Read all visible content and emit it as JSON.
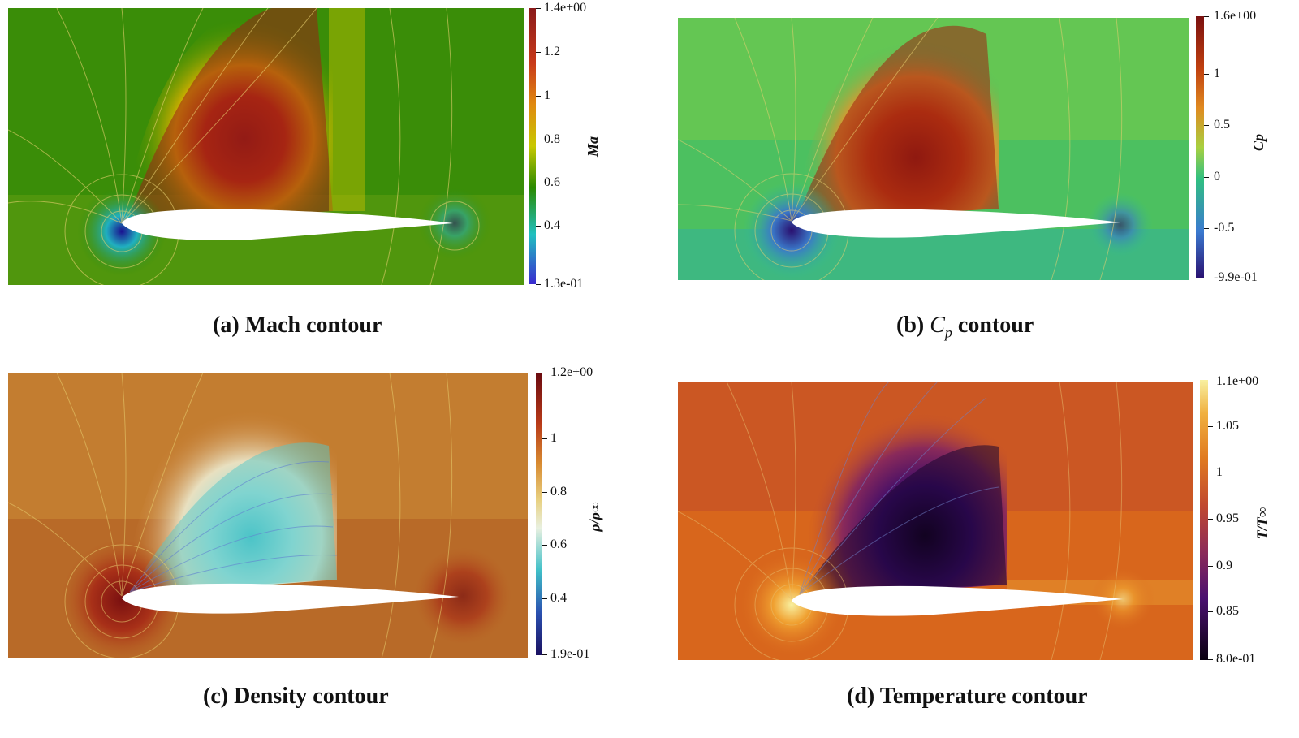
{
  "panels": [
    {
      "caption_prefix": "(a) Mach contour",
      "colorbar_label": "Ma",
      "ticks": [
        "1.4e+00",
        "1.2",
        "1",
        "0.8",
        "0.6",
        "0.4",
        "1.3e-01"
      ],
      "colors": {
        "top": "#8a1a1a",
        "mid": "#c8c800",
        "low": "#2a8a00",
        "bottom": "#3a2ad0"
      }
    },
    {
      "caption_prefix": "(b)",
      "caption_symbol": "C",
      "caption_sub": "p",
      "caption_suffix": "contour",
      "colorbar_label": "Cp",
      "ticks": [
        "1.6e+00",
        "1",
        "0.5",
        "0",
        "-0.5",
        "-9.9e-01"
      ],
      "colors": {
        "top": "#7a1010",
        "mid": "#e07a20",
        "low": "#30c080",
        "bottom": "#2a1070"
      }
    },
    {
      "caption_prefix": "(c) Density contour",
      "colorbar_label": "ρ/ρ∞",
      "ticks": [
        "1.2e+00",
        "1",
        "0.8",
        "0.6",
        "0.4",
        "1.9e-01"
      ],
      "colors": {
        "top": "#6a0a10",
        "mid": "#d0b060",
        "low": "#40c0c8",
        "bottom": "#1a1060"
      }
    },
    {
      "caption_prefix": "(d) Temperature contour",
      "colorbar_label": "T/T∞",
      "ticks": [
        "1.1e+00",
        "1.05",
        "1",
        "0.95",
        "0.9",
        "0.85",
        "8.0e-01"
      ],
      "colors": {
        "top": "#f8f0a0",
        "mid": "#e05a20",
        "low": "#6a1a6a",
        "bottom": "#0a0010"
      }
    }
  ]
}
